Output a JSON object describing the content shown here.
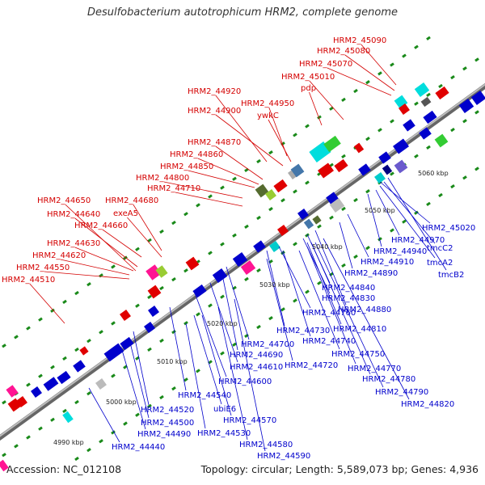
{
  "title": "Desulfobacterium autotrophicum HRM2, complete genome",
  "accession": "Accession: NC_012108",
  "summary": "Topology: circular; Length: 5,589,073 bp; Genes: 4,936",
  "colors": {
    "forward_label": "#d40000",
    "reverse_label": "#0000cc",
    "backbone": "#888888",
    "tick": "#1a8a1a"
  },
  "scale_labels": [
    "4990 kbp",
    "5000 kbp",
    "5010 kbp",
    "5020 kbp",
    "5030 kbp",
    "5040 kbp",
    "5050 kbp",
    "5060 kbp"
  ],
  "forward_labels": [
    "HRM2_45090",
    "HRM2_45080",
    "HRM2_45070",
    "HRM2_45010",
    "pdp",
    "HRM2_44920",
    "HRM2_44950",
    "HRM2_44900",
    "ywkC",
    "HRM2_44870",
    "HRM2_44860",
    "HRM2_44850",
    "HRM2_44800",
    "HRM2_44710",
    "HRM2_44680",
    "HRM2_44650",
    "exeA5",
    "HRM2_44640",
    "HRM2_44660",
    "HRM2_44630",
    "HRM2_44620",
    "HRM2_44550",
    "HRM2_44510"
  ],
  "reverse_labels": [
    "HRM2_45020",
    "HRM2_44970",
    "HRM2_44940",
    "tmcC2",
    "tmcA2",
    "HRM2_44910",
    "tmcB2",
    "HRM2_44890",
    "HRM2_44840",
    "HRM2_44830",
    "HRM2_44880",
    "HRM2_44760",
    "HRM2_44730",
    "HRM2_44810",
    "HRM2_44740",
    "HRM2_44700",
    "HRM2_44750",
    "HRM2_44690",
    "HRM2_44720",
    "HRM2_44770",
    "HRM2_44610",
    "HRM2_44780",
    "HRM2_44600",
    "HRM2_44790",
    "HRM2_44540",
    "HRM2_44820",
    "ubiE6",
    "HRM2_44520",
    "HRM2_44570",
    "HRM2_44500",
    "HRM2_44490",
    "HRM2_44530",
    "HRM2_44580",
    "HRM2_44440",
    "HRM2_44590"
  ]
}
